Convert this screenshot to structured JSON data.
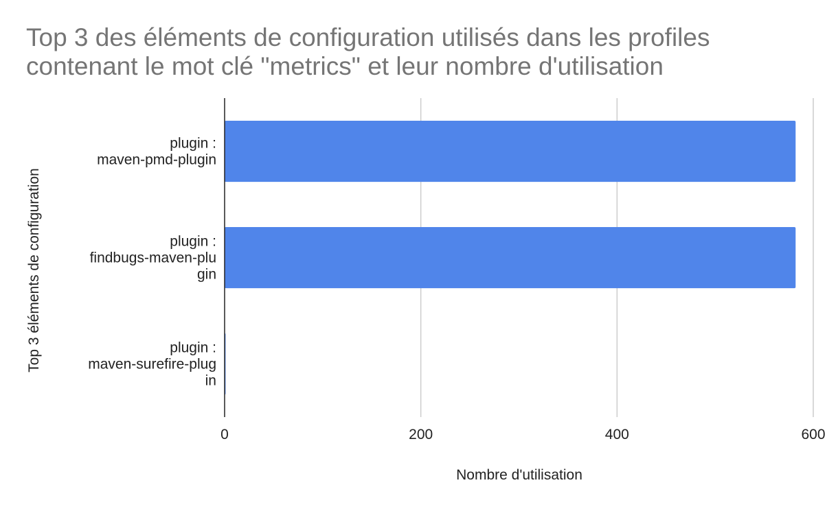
{
  "chart_data": {
    "type": "bar",
    "orientation": "horizontal",
    "title": "Top 3 des éléments de configuration utilisés dans les profiles contenant le mot clé \"metrics\" et leur nombre d'utilisation",
    "xlabel": "Nombre d'utilisation",
    "ylabel": "Top 3 éléments de configuration",
    "categories": [
      [
        "plugin :",
        "maven-pmd-plugin"
      ],
      [
        "plugin :",
        "findbugs-maven-plu",
        "gin"
      ],
      [
        "plugin :",
        "maven-surefire-plug",
        "in"
      ]
    ],
    "values": [
      582,
      582,
      1
    ],
    "xlim": [
      0,
      600
    ],
    "xticks": [
      "0",
      "200",
      "400",
      "600"
    ],
    "grid": true,
    "legend": "none",
    "colors": {
      "bar": "#5085ea",
      "grid": "#cccccc",
      "axis": "#222222",
      "title": "#757575"
    }
  }
}
